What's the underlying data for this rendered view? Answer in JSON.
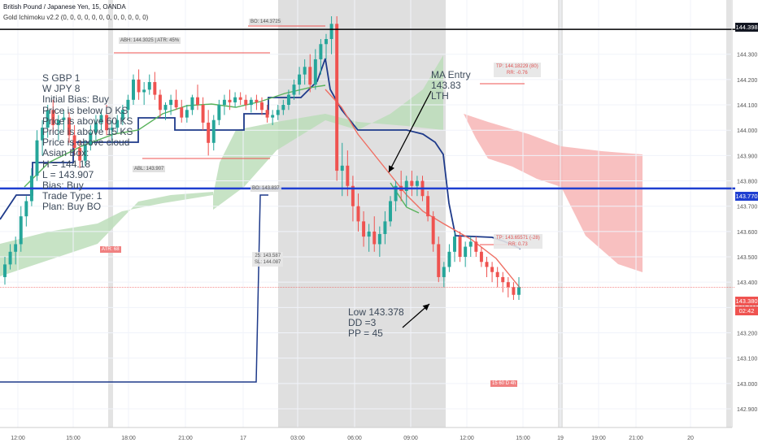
{
  "header": {
    "symbol_line": "British Pound / Japanese Yen, 15, OANDA",
    "indicator_line": "Gold Ichimoku v2.2 (0, 0, 0, 0, 0, 0, 0, 0, 0, 0, 0, 0)"
  },
  "notes": "S GBP 1\nW JPY 8\nInitial Bias: Buy\nPrice is below D KS\nPrice is above 60 KS\nPrice is above 15 KS\nPrice is above cloud\nAsian Box:\nH = 144.18\nL = 143.907\nBias: Buy\nTrade Type: 1\nPlan: Buy BO",
  "annotations": {
    "ma_entry": "MA Entry\n143.83\nLTH",
    "low": "Low 143.378\nDD =3\nPP = 45"
  },
  "labels": {
    "bo_top": "BO: 144.3725",
    "abh": "ABH: 144.3025 | ATR: 45%",
    "abl": "ABL: 143.907",
    "bo_low": "BO: 143.837",
    "atr": "ATR: 68",
    "entry_sl": "25: 143.587\nSL: 144.087",
    "tp_top": "TP: 144.18229 (80)\nRR: -0.76",
    "tp_mid": "TP: 143.65571 (-28)\nRR: 0.73",
    "badges": "15  60  D  4h"
  },
  "price_tags": {
    "top_line": "144.398",
    "blue_line": "143.770",
    "current": "143.380",
    "countdown": "02:42"
  },
  "colors": {
    "up_candle": "#26a69a",
    "down_candle": "#ef5350",
    "kijun": "#1e3a8a",
    "ma": "#ef6f63",
    "green_line": "#59b35b",
    "cloud_green": "#b9dcb6",
    "cloud_red": "#f7b5b5",
    "session_shade": "#d9d9d9"
  },
  "chart_data": {
    "type": "candlestick",
    "symbol": "GBPJPY",
    "timeframe": "15",
    "y_axis_ticks": [
      144.4,
      144.3,
      144.2,
      144.1,
      144.0,
      143.9,
      143.8,
      143.7,
      143.6,
      143.5,
      143.4,
      143.3,
      143.2,
      143.1,
      143.0,
      142.9
    ],
    "ylim": [
      142.9,
      144.45
    ],
    "x_axis_ticks": [
      "12:00",
      "15:00",
      "18:00",
      "21:00",
      "17",
      "03:00",
      "06:00",
      "09:00",
      "12:00",
      "15:00",
      "19",
      "19:00",
      "21:00",
      "20"
    ],
    "horizontal_lines": [
      {
        "price": 144.398,
        "color": "#000000"
      },
      {
        "price": 143.77,
        "color": "#1f3fd1"
      },
      {
        "price": 143.38,
        "color": "#ef5350"
      }
    ],
    "candles": [
      [
        143.42,
        143.5,
        143.39,
        143.47
      ],
      [
        143.47,
        143.55,
        143.45,
        143.52
      ],
      [
        143.52,
        143.58,
        143.47,
        143.55
      ],
      [
        143.55,
        143.7,
        143.52,
        143.66
      ],
      [
        143.66,
        143.74,
        143.62,
        143.72
      ],
      [
        143.72,
        143.85,
        143.7,
        143.82
      ],
      [
        143.82,
        144.0,
        143.8,
        143.96
      ],
      [
        143.96,
        144.04,
        143.9,
        144.01
      ],
      [
        144.01,
        144.1,
        143.97,
        144.08
      ],
      [
        144.08,
        144.12,
        143.99,
        144.02
      ],
      [
        144.02,
        144.06,
        143.96,
        144.04
      ],
      [
        144.04,
        144.08,
        144.0,
        144.05
      ],
      [
        144.05,
        144.07,
        143.95,
        143.98
      ],
      [
        143.98,
        144.02,
        143.9,
        143.93
      ],
      [
        143.93,
        143.96,
        143.85,
        143.88
      ],
      [
        143.88,
        143.96,
        143.86,
        143.94
      ],
      [
        143.94,
        144.02,
        143.92,
        143.99
      ],
      [
        143.99,
        144.06,
        143.96,
        144.03
      ],
      [
        144.03,
        144.08,
        144.0,
        144.06
      ],
      [
        144.06,
        144.1,
        143.98,
        144.0
      ],
      [
        144.0,
        144.04,
        143.95,
        144.01
      ],
      [
        144.01,
        144.06,
        143.99,
        144.04
      ],
      [
        144.04,
        144.1,
        144.02,
        144.08
      ],
      [
        144.08,
        144.14,
        144.04,
        144.12
      ],
      [
        144.12,
        144.22,
        144.1,
        144.2
      ],
      [
        144.2,
        144.24,
        144.12,
        144.15
      ],
      [
        144.15,
        144.19,
        144.1,
        144.16
      ],
      [
        144.16,
        144.22,
        144.14,
        144.19
      ],
      [
        144.19,
        144.23,
        144.12,
        144.14
      ],
      [
        144.14,
        144.16,
        144.05,
        144.08
      ],
      [
        144.08,
        144.11,
        144.04,
        144.1
      ],
      [
        144.1,
        144.14,
        144.06,
        144.12
      ],
      [
        144.12,
        144.16,
        144.08,
        144.09
      ],
      [
        144.09,
        144.12,
        144.03,
        144.05
      ],
      [
        144.05,
        144.1,
        144.03,
        144.08
      ],
      [
        144.08,
        144.14,
        144.06,
        144.13
      ],
      [
        144.13,
        144.18,
        144.08,
        144.1
      ],
      [
        144.1,
        144.13,
        144.0,
        144.03
      ],
      [
        144.03,
        144.08,
        143.9,
        143.95
      ],
      [
        143.95,
        144.06,
        143.92,
        144.04
      ],
      [
        144.04,
        144.12,
        144.02,
        144.1
      ],
      [
        144.1,
        144.14,
        144.06,
        144.12
      ],
      [
        144.12,
        144.16,
        144.08,
        144.11
      ],
      [
        144.11,
        144.15,
        144.09,
        144.13
      ],
      [
        144.13,
        144.15,
        144.1,
        144.12
      ],
      [
        144.12,
        144.14,
        144.08,
        144.1
      ],
      [
        144.1,
        144.13,
        144.07,
        144.12
      ],
      [
        144.12,
        144.14,
        144.08,
        144.11
      ],
      [
        144.11,
        144.13,
        144.06,
        144.08
      ],
      [
        144.08,
        144.1,
        144.03,
        144.05
      ],
      [
        144.05,
        144.08,
        144.02,
        144.06
      ],
      [
        144.06,
        144.1,
        144.04,
        144.08
      ],
      [
        144.08,
        144.12,
        144.06,
        144.1
      ],
      [
        144.1,
        144.16,
        144.08,
        144.14
      ],
      [
        144.14,
        144.2,
        144.12,
        144.18
      ],
      [
        144.18,
        144.25,
        144.14,
        144.22
      ],
      [
        144.22,
        144.28,
        144.18,
        144.25
      ],
      [
        144.25,
        144.3,
        144.15,
        144.18
      ],
      [
        144.18,
        144.32,
        144.16,
        144.28
      ],
      [
        144.28,
        144.36,
        144.22,
        144.34
      ],
      [
        144.34,
        144.38,
        144.28,
        144.36
      ],
      [
        144.36,
        144.45,
        144.3,
        144.42
      ],
      [
        144.42,
        144.45,
        143.8,
        143.84
      ],
      [
        143.84,
        143.95,
        143.74,
        143.86
      ],
      [
        143.86,
        143.92,
        143.74,
        143.78
      ],
      [
        143.78,
        143.82,
        143.64,
        143.7
      ],
      [
        143.7,
        143.75,
        143.6,
        143.64
      ],
      [
        143.64,
        143.68,
        143.54,
        143.58
      ],
      [
        143.58,
        143.63,
        143.52,
        143.6
      ],
      [
        143.6,
        143.66,
        143.52,
        143.55
      ],
      [
        143.55,
        143.62,
        143.5,
        143.59
      ],
      [
        143.59,
        143.68,
        143.55,
        143.64
      ],
      [
        143.64,
        143.74,
        143.62,
        143.72
      ],
      [
        143.72,
        143.8,
        143.68,
        143.78
      ],
      [
        143.78,
        143.84,
        143.72,
        143.76
      ],
      [
        143.76,
        143.82,
        143.7,
        143.8
      ],
      [
        143.8,
        143.84,
        143.74,
        143.78
      ],
      [
        143.78,
        143.82,
        143.74,
        143.8
      ],
      [
        143.8,
        143.82,
        143.72,
        143.74
      ],
      [
        143.74,
        143.76,
        143.64,
        143.66
      ],
      [
        143.66,
        143.68,
        143.52,
        143.55
      ],
      [
        143.55,
        143.58,
        143.4,
        143.42
      ],
      [
        143.42,
        143.48,
        143.38,
        143.46
      ],
      [
        143.46,
        143.55,
        143.44,
        143.52
      ],
      [
        143.52,
        143.6,
        143.48,
        143.58
      ],
      [
        143.58,
        143.6,
        143.48,
        143.5
      ],
      [
        143.5,
        143.56,
        143.46,
        143.54
      ],
      [
        143.54,
        143.58,
        143.5,
        143.56
      ],
      [
        143.56,
        143.58,
        143.5,
        143.52
      ],
      [
        143.52,
        143.54,
        143.46,
        143.48
      ],
      [
        143.48,
        143.5,
        143.42,
        143.46
      ],
      [
        143.46,
        143.48,
        143.4,
        143.44
      ],
      [
        143.44,
        143.46,
        143.38,
        143.42
      ],
      [
        143.42,
        143.44,
        143.36,
        143.4
      ],
      [
        143.4,
        143.42,
        143.34,
        143.38
      ],
      [
        143.38,
        143.4,
        143.33,
        143.35
      ],
      [
        143.35,
        143.42,
        143.33,
        143.38
      ]
    ]
  }
}
